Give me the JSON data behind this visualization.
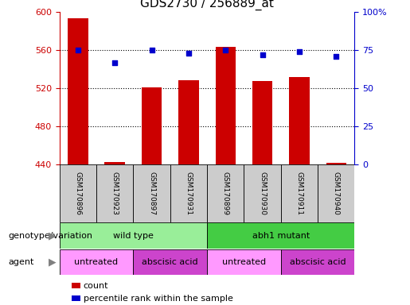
{
  "title": "GDS2730 / 256889_at",
  "samples": [
    "GSM170896",
    "GSM170923",
    "GSM170897",
    "GSM170931",
    "GSM170899",
    "GSM170930",
    "GSM170911",
    "GSM170940"
  ],
  "counts": [
    594,
    443,
    521,
    529,
    564,
    528,
    532,
    442
  ],
  "percentile_ranks": [
    75,
    67,
    75,
    73,
    75,
    72,
    74,
    71
  ],
  "ylim_left": [
    440,
    600
  ],
  "ylim_right": [
    0,
    100
  ],
  "yticks_left": [
    440,
    480,
    520,
    560,
    600
  ],
  "yticks_right": [
    0,
    25,
    50,
    75,
    100
  ],
  "ytick_labels_right": [
    "0",
    "25",
    "50",
    "75",
    "100%"
  ],
  "bar_bottom": 440,
  "bar_color": "#cc0000",
  "dot_color": "#0000cc",
  "genotype_groups": [
    {
      "label": "wild type",
      "start": 0,
      "end": 4,
      "color": "#99ee99"
    },
    {
      "label": "abh1 mutant",
      "start": 4,
      "end": 8,
      "color": "#44cc44"
    }
  ],
  "agent_groups": [
    {
      "label": "untreated",
      "start": 0,
      "end": 2,
      "color": "#ff99ff"
    },
    {
      "label": "abscisic acid",
      "start": 2,
      "end": 4,
      "color": "#cc44cc"
    },
    {
      "label": "untreated",
      "start": 4,
      "end": 6,
      "color": "#ff99ff"
    },
    {
      "label": "abscisic acid",
      "start": 6,
      "end": 8,
      "color": "#cc44cc"
    }
  ],
  "legend_count_label": "count",
  "legend_pct_label": "percentile rank within the sample",
  "title_fontsize": 11,
  "tick_label_color_left": "#cc0000",
  "tick_label_color_right": "#0000cc",
  "background_color": "#ffffff",
  "grid_color": "#000000",
  "annotation_row1_label": "genotype/variation",
  "annotation_row2_label": "agent",
  "sample_label_bg": "#cccccc"
}
